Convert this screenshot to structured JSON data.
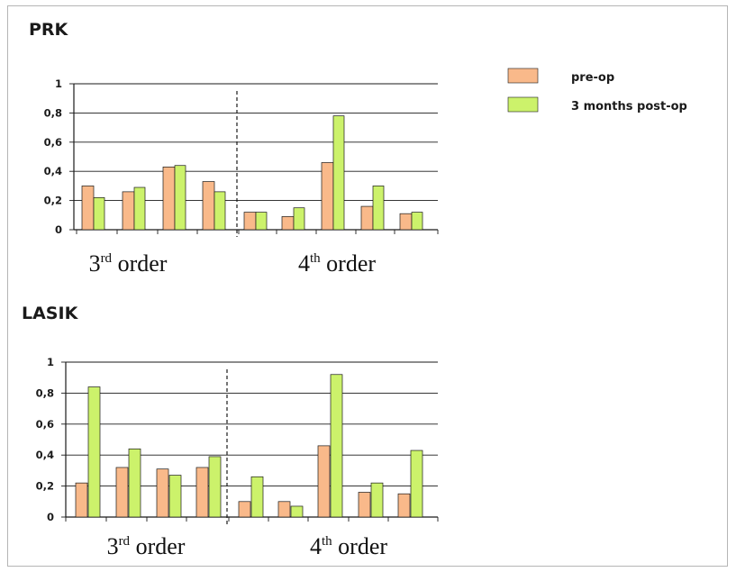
{
  "legend": [
    {
      "label": "pre-op",
      "color": "#f9b98a"
    },
    {
      "label": "3 months post-op",
      "color": "#ccf26b"
    }
  ],
  "colors": {
    "pre_op_fill": "#f9b98a",
    "post_op_fill": "#ccf26b",
    "bar_stroke": "#1a1a1a",
    "grid": "#1a1a1a",
    "divider": "#1a1a1a"
  },
  "chart_data": [
    {
      "type": "bar",
      "title": "PRK",
      "ylim": [
        0,
        1
      ],
      "yticks": [
        "0",
        "0,2",
        "0,4",
        "0,6",
        "0,8",
        "1"
      ],
      "grid": true,
      "legend_position": "top-right",
      "groups": [
        {
          "label": "order",
          "ordinal": "3",
          "suffix": "rd",
          "categories": 4
        },
        {
          "label": "order",
          "ordinal": "4",
          "suffix": "th",
          "categories": 5
        }
      ],
      "series": [
        {
          "name": "pre-op",
          "values": [
            0.3,
            0.26,
            0.43,
            0.33,
            0.12,
            0.09,
            0.46,
            0.16,
            0.11
          ]
        },
        {
          "name": "3 months post-op",
          "values": [
            0.22,
            0.29,
            0.44,
            0.26,
            0.12,
            0.15,
            0.78,
            0.3,
            0.12
          ]
        }
      ]
    },
    {
      "type": "bar",
      "title": "LASIK",
      "ylim": [
        0,
        1
      ],
      "yticks": [
        "0",
        "0,2",
        "0,4",
        "0,6",
        "0,8",
        "1"
      ],
      "grid": true,
      "groups": [
        {
          "label": "order",
          "ordinal": "3",
          "suffix": "rd",
          "categories": 4
        },
        {
          "label": "order",
          "ordinal": "4",
          "suffix": "th",
          "categories": 5
        }
      ],
      "series": [
        {
          "name": "pre-op",
          "values": [
            0.22,
            0.32,
            0.31,
            0.32,
            0.1,
            0.1,
            0.46,
            0.16,
            0.15
          ]
        },
        {
          "name": "3 months post-op",
          "values": [
            0.84,
            0.44,
            0.27,
            0.39,
            0.26,
            0.07,
            0.92,
            0.22,
            0.43
          ]
        }
      ]
    }
  ]
}
